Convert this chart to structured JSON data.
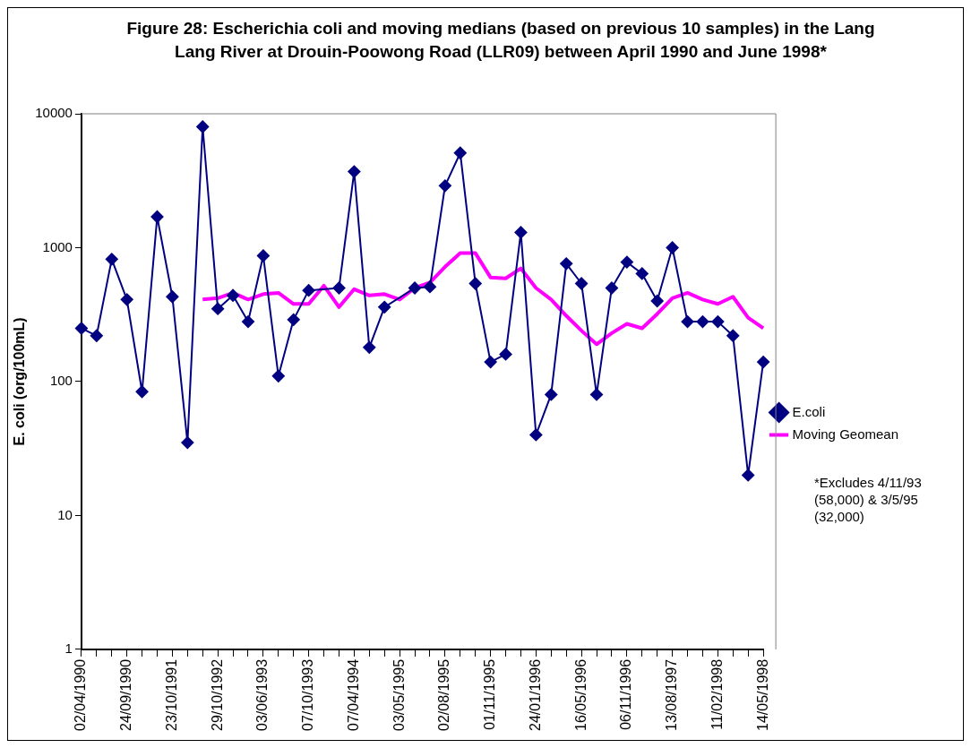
{
  "chart_data": {
    "type": "line",
    "title": "Figure 28: Escherichia coli and moving medians (based on previous 10 samples) in the Lang Lang River at Drouin-Poowong Road (LLR09) between April 1990 and June 1998*",
    "ylabel": "E. coli (org/100mL)",
    "categories": [
      "02/04/1990",
      null,
      null,
      "24/09/1990",
      null,
      null,
      "23/10/1991",
      null,
      null,
      "29/10/1992",
      null,
      null,
      "03/06/1993",
      null,
      null,
      "07/10/1993",
      null,
      null,
      "07/04/1994",
      null,
      null,
      "03/05/1995",
      null,
      null,
      "02/08/1995",
      null,
      null,
      "01/11/1995",
      null,
      null,
      "24/01/1996",
      null,
      null,
      "16/05/1996",
      null,
      null,
      "06/11/1996",
      null,
      null,
      "13/08/1997",
      null,
      null,
      "11/02/1998",
      null,
      null,
      "14/05/1998"
    ],
    "series": [
      {
        "name": "E.coli",
        "color": "#000080",
        "marker": "diamond",
        "values": [
          250,
          220,
          820,
          410,
          84,
          1700,
          430,
          35,
          8000,
          350,
          440,
          280,
          870,
          110,
          290,
          480,
          null,
          500,
          3700,
          180,
          360,
          null,
          500,
          510,
          2900,
          5100,
          540,
          140,
          160,
          1300,
          40,
          80,
          760,
          540,
          80,
          500,
          780,
          640,
          400,
          1000,
          280,
          280,
          280,
          220,
          20,
          140
        ]
      },
      {
        "name": "Moving Geomean",
        "color": "#ff00ff",
        "marker": "none",
        "values": [
          null,
          null,
          null,
          null,
          null,
          null,
          null,
          null,
          410,
          420,
          460,
          410,
          450,
          460,
          380,
          380,
          520,
          360,
          490,
          440,
          450,
          410,
          500,
          550,
          720,
          910,
          910,
          600,
          590,
          700,
          500,
          410,
          310,
          240,
          190,
          230,
          270,
          250,
          320,
          420,
          460,
          410,
          380,
          430,
          300,
          250
        ]
      }
    ],
    "log": true,
    "ylim": [
      1,
      10000
    ],
    "yticks": [
      1,
      10,
      100,
      1000,
      10000
    ],
    "grid": false,
    "legend": "right",
    "annotations": [
      "*Excludes 4/11/93 (58,000) & 3/5/95 (32,000)"
    ]
  }
}
